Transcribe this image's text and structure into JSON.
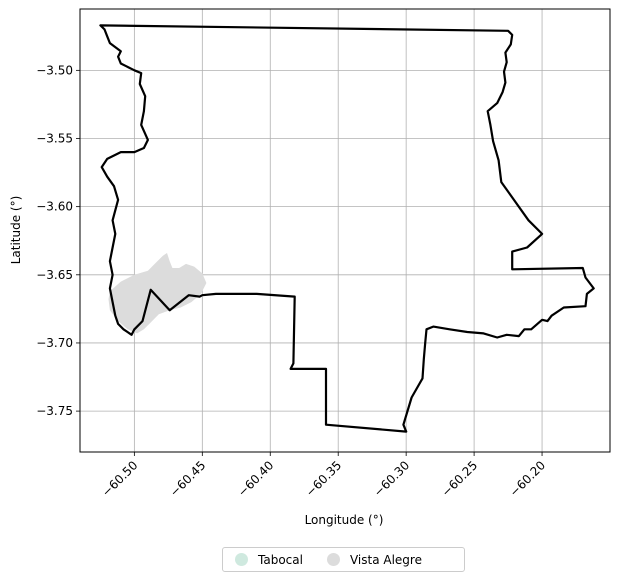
{
  "chart_data": {
    "type": "map",
    "xlabel": "Longitude (°)",
    "ylabel": "Latitude (°)",
    "xlim": [
      -60.54,
      -60.15
    ],
    "ylim": [
      -3.78,
      -3.455
    ],
    "x_ticks": [
      -60.5,
      -60.45,
      -60.4,
      -60.35,
      -60.3,
      -60.25,
      -60.2
    ],
    "x_tick_labels": [
      "−60.50",
      "−60.45",
      "−60.40",
      "−60.35",
      "−60.30",
      "−60.25",
      "−60.20"
    ],
    "y_ticks": [
      -3.5,
      -3.55,
      -3.6,
      -3.65,
      -3.7,
      -3.75
    ],
    "y_tick_labels": [
      "−3.50",
      "−3.55",
      "−3.60",
      "−3.65",
      "−3.70",
      "−3.75"
    ],
    "grid": true,
    "legend_position": "bottom-center",
    "series": [
      {
        "name": "Tabocal",
        "color": "#cfe9df"
      },
      {
        "name": "Vista Alegre",
        "color": "#dcdcdc"
      }
    ],
    "vista_alegre_polygon": [
      [
        -60.518,
        -3.662
      ],
      [
        -60.51,
        -3.655
      ],
      [
        -60.5,
        -3.65
      ],
      [
        -60.49,
        -3.647
      ],
      [
        -60.484,
        -3.641
      ],
      [
        -60.479,
        -3.636
      ],
      [
        -60.476,
        -3.634
      ],
      [
        -60.474,
        -3.64
      ],
      [
        -60.472,
        -3.645
      ],
      [
        -60.467,
        -3.645
      ],
      [
        -60.462,
        -3.642
      ],
      [
        -60.456,
        -3.644
      ],
      [
        -60.45,
        -3.649
      ],
      [
        -60.447,
        -3.656
      ],
      [
        -60.451,
        -3.664
      ],
      [
        -60.458,
        -3.67
      ],
      [
        -60.466,
        -3.674
      ],
      [
        -60.474,
        -3.676
      ],
      [
        -60.482,
        -3.679
      ],
      [
        -60.488,
        -3.685
      ],
      [
        -60.493,
        -3.69
      ],
      [
        -60.498,
        -3.693
      ],
      [
        -60.505,
        -3.69
      ],
      [
        -60.512,
        -3.684
      ],
      [
        -60.518,
        -3.676
      ],
      [
        -60.519,
        -3.668
      ]
    ],
    "boundary": [
      [
        -60.525,
        -3.467
      ],
      [
        -60.225,
        -3.471
      ],
      [
        -60.222,
        -3.474
      ],
      [
        -60.223,
        -3.481
      ],
      [
        -60.227,
        -3.487
      ],
      [
        -60.226,
        -3.494
      ],
      [
        -60.228,
        -3.501
      ],
      [
        -60.227,
        -3.509
      ],
      [
        -60.229,
        -3.516
      ],
      [
        -60.233,
        -3.524
      ],
      [
        -60.24,
        -3.53
      ],
      [
        -60.238,
        -3.54
      ],
      [
        -60.236,
        -3.552
      ],
      [
        -60.232,
        -3.566
      ],
      [
        -60.23,
        -3.582
      ],
      [
        -60.21,
        -3.61
      ],
      [
        -60.2,
        -3.62
      ],
      [
        -60.211,
        -3.63
      ],
      [
        -60.222,
        -3.633
      ],
      [
        -60.222,
        -3.646
      ],
      [
        -60.17,
        -3.645
      ],
      [
        -60.168,
        -3.652
      ],
      [
        -60.162,
        -3.66
      ],
      [
        -60.167,
        -3.664
      ],
      [
        -60.168,
        -3.673
      ],
      [
        -60.184,
        -3.674
      ],
      [
        -60.193,
        -3.68
      ],
      [
        -60.196,
        -3.684
      ],
      [
        -60.2,
        -3.683
      ],
      [
        -60.208,
        -3.69
      ],
      [
        -60.213,
        -3.69
      ],
      [
        -60.217,
        -3.695
      ],
      [
        -60.226,
        -3.694
      ],
      [
        -60.233,
        -3.696
      ],
      [
        -60.243,
        -3.693
      ],
      [
        -60.255,
        -3.692
      ],
      [
        -60.268,
        -3.69
      ],
      [
        -60.28,
        -3.688
      ],
      [
        -60.285,
        -3.69
      ],
      [
        -60.286,
        -3.7
      ],
      [
        -60.287,
        -3.712
      ],
      [
        -60.288,
        -3.726
      ],
      [
        -60.296,
        -3.74
      ],
      [
        -60.302,
        -3.76
      ],
      [
        -60.3,
        -3.765
      ],
      [
        -60.359,
        -3.76
      ],
      [
        -60.359,
        -3.719
      ],
      [
        -60.385,
        -3.719
      ],
      [
        -60.383,
        -3.715
      ],
      [
        -60.382,
        -3.666
      ],
      [
        -60.41,
        -3.664
      ],
      [
        -60.44,
        -3.664
      ],
      [
        -60.45,
        -3.665
      ],
      [
        -60.452,
        -3.666
      ],
      [
        -60.46,
        -3.665
      ],
      [
        -60.474,
        -3.676
      ],
      [
        -60.488,
        -3.661
      ],
      [
        -60.494,
        -3.684
      ],
      [
        -60.5,
        -3.69
      ],
      [
        -60.502,
        -3.694
      ],
      [
        -60.508,
        -3.69
      ],
      [
        -60.512,
        -3.686
      ],
      [
        -60.514,
        -3.68
      ],
      [
        -60.516,
        -3.67
      ],
      [
        -60.518,
        -3.66
      ],
      [
        -60.516,
        -3.65
      ],
      [
        -60.518,
        -3.64
      ],
      [
        -60.516,
        -3.63
      ],
      [
        -60.514,
        -3.62
      ],
      [
        -60.516,
        -3.61
      ],
      [
        -60.512,
        -3.595
      ],
      [
        -60.515,
        -3.585
      ],
      [
        -60.52,
        -3.578
      ],
      [
        -60.524,
        -3.571
      ],
      [
        -60.52,
        -3.565
      ],
      [
        -60.51,
        -3.56
      ],
      [
        -60.5,
        -3.56
      ],
      [
        -60.493,
        -3.557
      ],
      [
        -60.49,
        -3.551
      ],
      [
        -60.495,
        -3.54
      ],
      [
        -60.493,
        -3.53
      ],
      [
        -60.492,
        -3.519
      ],
      [
        -60.496,
        -3.51
      ],
      [
        -60.495,
        -3.502
      ],
      [
        -60.5,
        -3.5
      ],
      [
        -60.506,
        -3.497
      ],
      [
        -60.51,
        -3.495
      ],
      [
        -60.512,
        -3.49
      ],
      [
        -60.51,
        -3.486
      ],
      [
        -60.518,
        -3.48
      ],
      [
        -60.52,
        -3.475
      ],
      [
        -60.522,
        -3.47
      ]
    ]
  }
}
